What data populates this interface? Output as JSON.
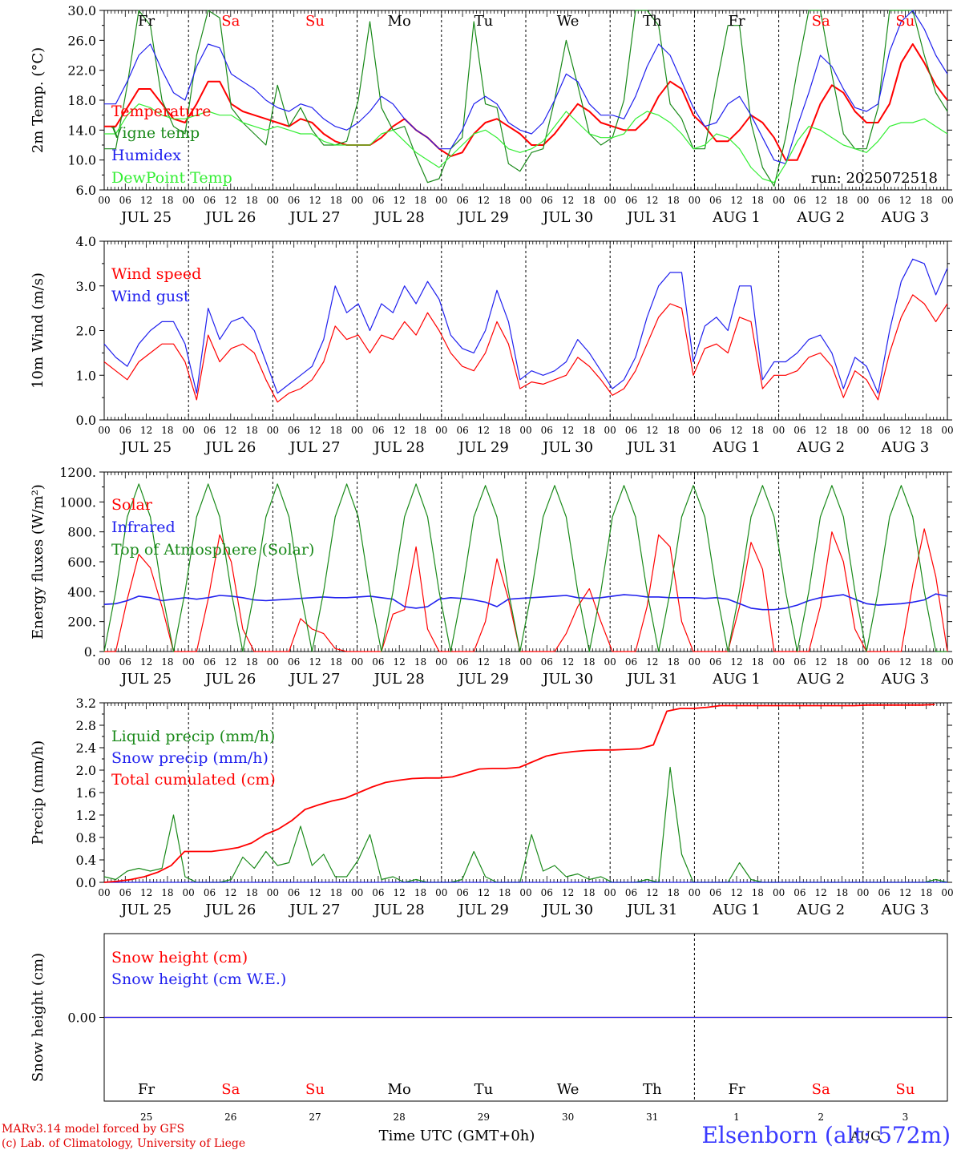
{
  "colors": {
    "red": "#ff0000",
    "green": "#1a8a1a",
    "light_green": "#33ee33",
    "blue": "#2020ee",
    "weekend_red": "#ff0000",
    "axis": "#000000"
  },
  "days": {
    "weekday_labels": [
      "Fr",
      "Sa",
      "Su",
      "Mo",
      "Tu",
      "We",
      "Th",
      "Fr",
      "Sa",
      "Su"
    ],
    "weekend_flags": [
      false,
      true,
      true,
      false,
      false,
      false,
      false,
      false,
      true,
      true
    ],
    "date_labels": [
      "JUL 25",
      "JUL 26",
      "JUL 27",
      "JUL 28",
      "JUL 29",
      "JUL 30",
      "JUL 31",
      "AUG  1",
      "AUG  2",
      "AUG  3"
    ],
    "day_numbers": [
      "25",
      "26",
      "27",
      "28",
      "29",
      "30",
      "31",
      "1",
      "2",
      "3"
    ],
    "hour_labels": [
      "00",
      "06",
      "12",
      "18"
    ],
    "final_hour_label": "00"
  },
  "run_label": "run: 2025072518",
  "bottom": {
    "time_axis_label": "Time UTC (GMT+0h)",
    "month_label": "AUG",
    "credit_line1": "MARv3.14 model forced by GFS",
    "credit_line2": "(c) Lab. of Climatology, University of Liege",
    "location": "Elsenborn (alt: 572m)"
  },
  "chart_data": [
    {
      "type": "line",
      "ylabel": "2m Temp. (°C)",
      "ylim": [
        6,
        30
      ],
      "yticks": [
        "6.0",
        "10.0",
        "14.0",
        "18.0",
        "22.0",
        "26.0",
        "30.0"
      ],
      "series": [
        {
          "name": "Temperature",
          "color": "#ff0000",
          "values": [
            14.5,
            14.5,
            17.0,
            19.5,
            19.5,
            17.5,
            15.5,
            15.0,
            17.5,
            20.5,
            20.5,
            17.5,
            16.5,
            16.0,
            15.5,
            15.0,
            14.5,
            15.5,
            15.0,
            13.5,
            12.5,
            12.0,
            12.0,
            12.0,
            13.0,
            14.5,
            15.5,
            14.0,
            13.0,
            11.5,
            10.5,
            11.0,
            13.5,
            15.0,
            15.5,
            14.5,
            13.5,
            12.0,
            12.0,
            13.5,
            15.5,
            17.5,
            16.5,
            15.0,
            14.5,
            14.0,
            14.0,
            15.5,
            18.5,
            20.5,
            19.5,
            16.0,
            14.5,
            12.5,
            12.5,
            14.0,
            16.0,
            15.0,
            13.0,
            10.0,
            10.0,
            13.5,
            17.5,
            20.0,
            19.0,
            16.5,
            15.0,
            15.0,
            17.5,
            23.0,
            25.5,
            23.0,
            20.0,
            18.0
          ]
        },
        {
          "name": "Vigne temp",
          "color": "#1a8a1a",
          "values": [
            11.5,
            11.5,
            20.0,
            30.0,
            28.0,
            18.0,
            14.5,
            13.5,
            24.0,
            30.0,
            29.0,
            17.0,
            15.0,
            13.5,
            12.0,
            20.0,
            14.5,
            17.0,
            14.0,
            12.0,
            12.0,
            12.5,
            18.0,
            28.5,
            17.0,
            14.0,
            14.5,
            10.5,
            7.0,
            7.5,
            11.5,
            13.0,
            28.5,
            17.5,
            17.0,
            9.5,
            8.5,
            11.0,
            11.5,
            18.0,
            26.0,
            20.0,
            13.5,
            12.0,
            13.0,
            18.0,
            30.0,
            31.0,
            28.0,
            17.5,
            15.5,
            11.5,
            11.5,
            20.0,
            28.0,
            28.0,
            15.0,
            9.0,
            6.5,
            13.0,
            22.0,
            31.0,
            30.0,
            21.5,
            13.5,
            11.5,
            11.5,
            17.0,
            30.0,
            31.0,
            30.0,
            24.0,
            19.0,
            16.5
          ]
        },
        {
          "name": "Humidex",
          "color": "#2020ee",
          "values": [
            17.5,
            17.5,
            20.5,
            24.0,
            25.5,
            22.0,
            19.0,
            18.0,
            22.5,
            25.5,
            25.0,
            21.5,
            20.5,
            19.5,
            18.0,
            17.0,
            16.5,
            17.5,
            17.0,
            15.5,
            14.5,
            14.0,
            15.0,
            16.5,
            18.5,
            17.5,
            15.5,
            14.0,
            13.0,
            11.5,
            11.5,
            14.0,
            17.5,
            18.5,
            17.5,
            15.0,
            14.0,
            13.5,
            15.0,
            18.0,
            21.5,
            20.5,
            17.5,
            16.0,
            16.0,
            15.5,
            18.5,
            22.5,
            25.5,
            24.0,
            20.5,
            17.0,
            14.5,
            15.0,
            17.5,
            18.5,
            16.0,
            13.0,
            10.0,
            9.5,
            14.5,
            19.0,
            24.0,
            22.5,
            19.5,
            17.0,
            16.5,
            17.5,
            24.5,
            28.5,
            30.0,
            27.5,
            24.0,
            21.5
          ]
        },
        {
          "name": "DewPoint Temp",
          "color": "#33ee33",
          "values": [
            13.5,
            13.5,
            16.0,
            17.5,
            17.0,
            16.0,
            15.5,
            15.5,
            16.0,
            16.5,
            16.0,
            16.0,
            15.0,
            14.5,
            14.0,
            14.5,
            14.0,
            13.5,
            13.5,
            12.5,
            12.0,
            12.0,
            12.0,
            12.0,
            13.5,
            14.0,
            12.5,
            11.0,
            10.0,
            9.0,
            10.5,
            12.0,
            13.5,
            14.0,
            13.0,
            11.5,
            11.0,
            11.5,
            12.5,
            14.5,
            16.5,
            15.0,
            13.5,
            13.0,
            13.0,
            13.5,
            15.5,
            16.5,
            16.0,
            15.0,
            13.5,
            11.5,
            12.0,
            13.5,
            13.0,
            11.5,
            9.0,
            7.5,
            7.0,
            9.5,
            12.5,
            14.5,
            14.0,
            13.0,
            12.0,
            11.5,
            11.0,
            12.5,
            14.5,
            15.0,
            15.0,
            15.5,
            14.5,
            13.5
          ]
        }
      ]
    },
    {
      "type": "line",
      "ylabel": "10m Wind (m/s)",
      "ylim": [
        0,
        4
      ],
      "yticks": [
        "0.0",
        "1.0",
        "2.0",
        "3.0",
        "4.0"
      ],
      "series": [
        {
          "name": "Wind speed",
          "color": "#ff0000",
          "values": [
            1.3,
            1.1,
            0.9,
            1.3,
            1.5,
            1.7,
            1.7,
            1.3,
            0.45,
            1.9,
            1.3,
            1.6,
            1.7,
            1.5,
            0.9,
            0.4,
            0.6,
            0.7,
            0.9,
            1.3,
            2.1,
            1.8,
            1.9,
            1.5,
            1.9,
            1.8,
            2.2,
            1.9,
            2.4,
            2.0,
            1.5,
            1.2,
            1.1,
            1.5,
            2.2,
            1.7,
            0.7,
            0.85,
            0.8,
            0.9,
            1.0,
            1.4,
            1.2,
            0.9,
            0.55,
            0.7,
            1.1,
            1.7,
            2.3,
            2.6,
            2.5,
            1.0,
            1.6,
            1.7,
            1.5,
            2.3,
            2.2,
            0.7,
            1.0,
            1.0,
            1.1,
            1.4,
            1.5,
            1.2,
            0.5,
            1.1,
            0.9,
            0.45,
            1.5,
            2.3,
            2.8,
            2.6,
            2.2,
            2.6
          ]
        },
        {
          "name": "Wind gust",
          "color": "#2020ee",
          "values": [
            1.7,
            1.4,
            1.2,
            1.7,
            2.0,
            2.2,
            2.2,
            1.7,
            0.6,
            2.5,
            1.8,
            2.2,
            2.3,
            2.0,
            1.3,
            0.6,
            0.8,
            1.0,
            1.2,
            1.8,
            3.0,
            2.4,
            2.6,
            2.0,
            2.6,
            2.4,
            3.0,
            2.6,
            3.1,
            2.7,
            1.9,
            1.6,
            1.5,
            2.0,
            2.9,
            2.2,
            0.9,
            1.1,
            1.0,
            1.1,
            1.3,
            1.8,
            1.5,
            1.1,
            0.7,
            0.9,
            1.4,
            2.3,
            3.0,
            3.3,
            3.3,
            1.3,
            2.1,
            2.3,
            2.0,
            3.0,
            3.0,
            0.9,
            1.3,
            1.3,
            1.5,
            1.8,
            1.9,
            1.5,
            0.7,
            1.4,
            1.2,
            0.6,
            2.0,
            3.1,
            3.6,
            3.5,
            2.8,
            3.4
          ]
        }
      ]
    },
    {
      "type": "line",
      "ylabel": "Energy fluxes (W/m²)",
      "ylim": [
        0,
        1200
      ],
      "yticks": [
        "0.",
        "200.",
        "400.",
        "600.",
        "800.",
        "1000.",
        "1200."
      ],
      "series": [
        {
          "name": "Solar",
          "color": "#ff0000",
          "values": [
            0,
            0,
            350,
            650,
            560,
            300,
            0,
            0,
            0,
            350,
            780,
            600,
            150,
            0,
            0,
            0,
            0,
            220,
            150,
            120,
            20,
            0,
            0,
            0,
            0,
            250,
            280,
            700,
            150,
            0,
            0,
            0,
            0,
            200,
            620,
            350,
            0,
            0,
            0,
            0,
            120,
            300,
            420,
            200,
            0,
            0,
            0,
            300,
            780,
            700,
            200,
            0,
            0,
            0,
            0,
            300,
            730,
            550,
            0,
            0,
            0,
            0,
            300,
            800,
            600,
            150,
            0,
            0,
            0,
            0,
            450,
            820,
            500,
            0
          ]
        },
        {
          "name": "Infrared",
          "color": "#2020ee",
          "values": [
            315,
            320,
            340,
            370,
            360,
            340,
            350,
            360,
            350,
            360,
            375,
            370,
            360,
            345,
            340,
            345,
            350,
            355,
            360,
            365,
            360,
            360,
            365,
            370,
            360,
            350,
            300,
            290,
            300,
            350,
            360,
            355,
            345,
            330,
            300,
            350,
            355,
            360,
            365,
            370,
            375,
            360,
            355,
            360,
            370,
            380,
            375,
            365,
            365,
            360,
            360,
            360,
            355,
            360,
            350,
            320,
            290,
            280,
            280,
            290,
            310,
            340,
            360,
            370,
            380,
            350,
            320,
            310,
            315,
            320,
            330,
            345,
            385,
            370
          ]
        },
        {
          "name": "Top of Atmosphere (Solar)",
          "color": "#1a8a1a",
          "values": [
            0,
            400,
            900,
            1120,
            900,
            400,
            0,
            400,
            900,
            1120,
            900,
            400,
            0,
            400,
            900,
            1120,
            900,
            400,
            0,
            400,
            900,
            1120,
            900,
            400,
            0,
            400,
            900,
            1120,
            900,
            400,
            0,
            400,
            900,
            1110,
            900,
            400,
            0,
            400,
            900,
            1110,
            900,
            400,
            0,
            400,
            900,
            1110,
            900,
            400,
            0,
            400,
            900,
            1110,
            900,
            400,
            0,
            400,
            900,
            1110,
            900,
            400,
            0,
            400,
            900,
            1110,
            900,
            400,
            0,
            400,
            900,
            1110,
            900,
            400,
            0,
            0
          ]
        }
      ]
    },
    {
      "type": "line",
      "ylabel": "Precip (mm/h)",
      "ylim": [
        0,
        3.2
      ],
      "yticks": [
        "0.0",
        "0.4",
        "0.8",
        "1.2",
        "1.6",
        "2.0",
        "2.4",
        "2.8",
        "3.2"
      ],
      "series": [
        {
          "name": "Liquid precip (mm/h)",
          "color": "#1a8a1a",
          "values": [
            0.1,
            0.05,
            0.2,
            0.25,
            0.2,
            0.25,
            1.2,
            0.1,
            0.0,
            0.0,
            0.0,
            0.05,
            0.45,
            0.25,
            0.55,
            0.3,
            0.35,
            1.0,
            0.3,
            0.5,
            0.1,
            0.1,
            0.4,
            0.85,
            0.05,
            0.1,
            0.0,
            0.05,
            0.0,
            0.0,
            0.0,
            0.05,
            0.55,
            0.1,
            0.0,
            0.0,
            0.0,
            0.85,
            0.2,
            0.3,
            0.1,
            0.15,
            0.05,
            0.1,
            0.0,
            0.0,
            0.0,
            0.05,
            0.0,
            2.05,
            0.5,
            0.0,
            0.0,
            0.0,
            0.0,
            0.35,
            0.05,
            0.0,
            0.0,
            0.0,
            0.0,
            0.0,
            0.0,
            0.0,
            0.0,
            0.0,
            0.0,
            0.0,
            0.0,
            0.0,
            0.0,
            0.0,
            0.05,
            0.0
          ]
        },
        {
          "name": "Snow precip (mm/h)",
          "color": "#2020ee",
          "values": [
            0,
            0,
            0,
            0,
            0,
            0,
            0,
            0,
            0,
            0,
            0,
            0,
            0,
            0,
            0,
            0,
            0,
            0,
            0,
            0,
            0,
            0,
            0,
            0,
            0,
            0,
            0,
            0,
            0,
            0,
            0,
            0,
            0,
            0,
            0,
            0,
            0,
            0,
            0,
            0,
            0,
            0,
            0,
            0,
            0,
            0,
            0,
            0,
            0,
            0,
            0,
            0,
            0,
            0,
            0,
            0,
            0,
            0,
            0,
            0,
            0,
            0,
            0,
            0,
            0,
            0,
            0,
            0,
            0,
            0,
            0,
            0,
            0,
            0
          ]
        },
        {
          "name": "Total cumulated (cm)",
          "color": "#ff0000",
          "values": [
            0.0,
            0.02,
            0.05,
            0.1,
            0.18,
            0.3,
            0.55,
            0.55,
            0.55,
            0.58,
            0.62,
            0.7,
            0.85,
            0.95,
            1.1,
            1.3,
            1.38,
            1.45,
            1.5,
            1.6,
            1.7,
            1.78,
            1.82,
            1.85,
            1.86,
            1.86,
            1.88,
            1.95,
            2.02,
            2.03,
            2.03,
            2.05,
            2.15,
            2.25,
            2.3,
            2.33,
            2.35,
            2.36,
            2.36,
            2.37,
            2.38,
            2.45,
            3.05,
            3.1,
            3.1,
            3.12,
            3.15,
            3.15,
            3.15,
            3.15,
            3.15,
            3.15,
            3.15,
            3.15,
            3.15,
            3.15,
            3.15,
            3.16,
            3.16,
            3.16,
            3.16,
            3.16,
            3.17
          ]
        }
      ]
    },
    {
      "type": "line",
      "ylabel": "Snow height (cm)",
      "yticks": [
        "0.00"
      ],
      "series": [
        {
          "name": "Snow height (cm)",
          "color": "#ff0000",
          "values": [
            0,
            0
          ]
        },
        {
          "name": "Snow height (cm W.E.)",
          "color": "#2020ee",
          "values": [
            0,
            0
          ]
        }
      ]
    }
  ]
}
